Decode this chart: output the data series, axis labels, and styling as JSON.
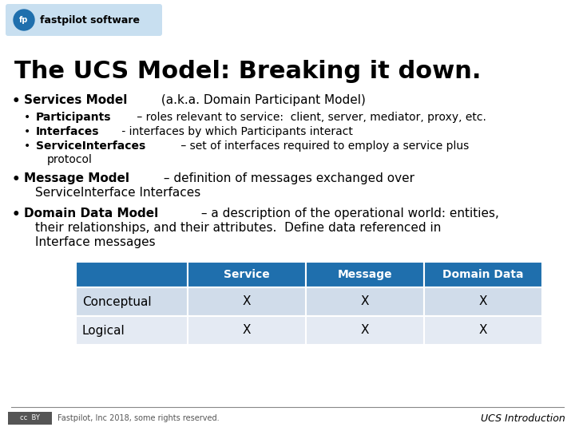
{
  "title": "The UCS Model: Breaking it down.",
  "background_color": "#ffffff",
  "header_logo_text": "fastpilot software",
  "bullet1_bold": "Services Model",
  "bullet1_rest": " (a.k.a. Domain Participant Model)",
  "sub1_bold": "Participants",
  "sub1_rest": " – roles relevant to service:  client, server, mediator, proxy, etc.",
  "sub2_bold": "Interfaces",
  "sub2_rest": " - interfaces by which Participants interact",
  "sub3_bold": "ServiceInterfaces",
  "sub3_rest": " – set of interfaces required to employ a service plus protocol",
  "bullet2_bold": "Message Model",
  "bullet2_rest": " – definition of messages exchanged over ServiceInterface Interfaces",
  "bullet3_bold": "Domain Data Model",
  "bullet3_rest": " – a description of the operational world: entities, their relationships, and their attributes.  Define data referenced in Interface messages",
  "table_header_color": "#1f6fad",
  "table_row1_color": "#d0dcea",
  "table_row2_color": "#e4eaf3",
  "table_header_text_color": "#ffffff",
  "table_col0_header": "",
  "table_col1_header": "Service",
  "table_col2_header": "Message",
  "table_col3_header": "Domain Data",
  "table_row1_label": "Conceptual",
  "table_row2_label": "Logical",
  "table_x_mark": "X",
  "footer_left": "Fastpilot, Inc 2018, some rights reserved.",
  "footer_right": "UCS Introduction",
  "title_color": "#000000",
  "body_fontsize": 10,
  "logo_bg_color": "#c8dff0",
  "logo_circle_color": "#1f6fad"
}
